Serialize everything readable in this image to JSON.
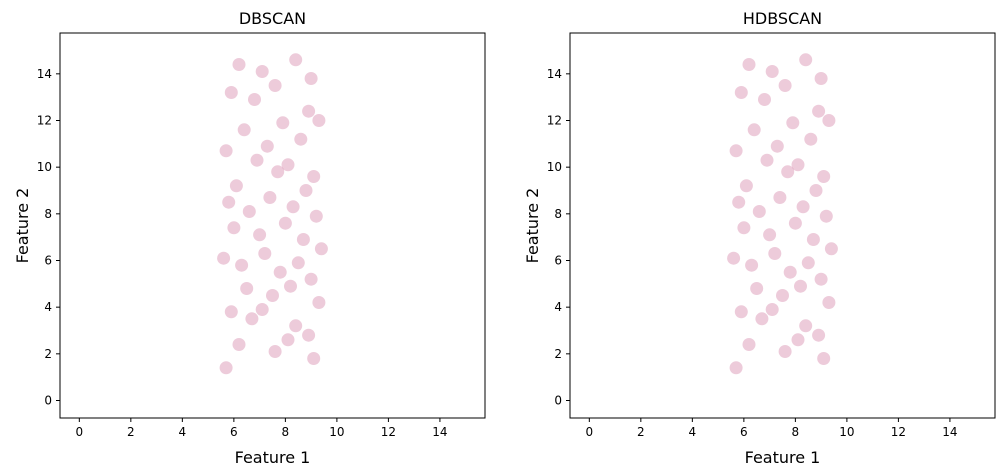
{
  "chart_data": [
    {
      "type": "scatter",
      "title": "DBSCAN",
      "xlabel": "Feature 1",
      "ylabel": "Feature 2",
      "xlim": [
        -0.75,
        15.75
      ],
      "ylim": [
        -0.75,
        15.75
      ],
      "xticks": [
        0,
        2,
        4,
        6,
        8,
        10,
        12,
        14
      ],
      "yticks": [
        0,
        2,
        4,
        6,
        8,
        10,
        12,
        14
      ],
      "grid": false,
      "marker_color": "#c0457a",
      "series": [
        {
          "x": [
            6.2,
            7.1,
            8.4,
            9.0,
            5.9,
            6.8,
            7.6,
            8.9,
            9.3,
            6.4,
            7.9,
            8.6,
            5.7,
            6.9,
            7.3,
            8.1,
            9.1,
            6.1,
            7.7,
            8.8,
            5.8,
            6.6,
            7.4,
            8.3,
            9.2,
            6.0,
            7.0,
            8.0,
            8.7,
            9.4,
            5.6,
            6.3,
            7.2,
            7.8,
            8.5,
            9.0,
            6.5,
            7.5,
            8.2,
            9.3,
            5.9,
            6.7,
            7.1,
            8.4,
            8.9,
            6.2,
            7.6,
            8.1,
            9.1,
            5.7
          ],
          "y": [
            14.4,
            14.1,
            14.6,
            13.8,
            13.2,
            12.9,
            13.5,
            12.4,
            12.0,
            11.6,
            11.9,
            11.2,
            10.7,
            10.3,
            10.9,
            10.1,
            9.6,
            9.2,
            9.8,
            9.0,
            8.5,
            8.1,
            8.7,
            8.3,
            7.9,
            7.4,
            7.1,
            7.6,
            6.9,
            6.5,
            6.1,
            5.8,
            6.3,
            5.5,
            5.9,
            5.2,
            4.8,
            4.5,
            4.9,
            4.2,
            3.8,
            3.5,
            3.9,
            3.2,
            2.8,
            2.4,
            2.1,
            2.6,
            1.8,
            1.4
          ]
        }
      ]
    },
    {
      "type": "scatter",
      "title": "HDBSCAN",
      "xlabel": "Feature 1",
      "ylabel": "Feature 2",
      "xlim": [
        -0.75,
        15.75
      ],
      "ylim": [
        -0.75,
        15.75
      ],
      "xticks": [
        0,
        2,
        4,
        6,
        8,
        10,
        12,
        14
      ],
      "yticks": [
        0,
        2,
        4,
        6,
        8,
        10,
        12,
        14
      ],
      "grid": false,
      "marker_color": "#c0457a",
      "series": [
        {
          "x": [
            6.2,
            7.1,
            8.4,
            9.0,
            5.9,
            6.8,
            7.6,
            8.9,
            9.3,
            6.4,
            7.9,
            8.6,
            5.7,
            6.9,
            7.3,
            8.1,
            9.1,
            6.1,
            7.7,
            8.8,
            5.8,
            6.6,
            7.4,
            8.3,
            9.2,
            6.0,
            7.0,
            8.0,
            8.7,
            9.4,
            5.6,
            6.3,
            7.2,
            7.8,
            8.5,
            9.0,
            6.5,
            7.5,
            8.2,
            9.3,
            5.9,
            6.7,
            7.1,
            8.4,
            8.9,
            6.2,
            7.6,
            8.1,
            9.1,
            5.7
          ],
          "y": [
            14.4,
            14.1,
            14.6,
            13.8,
            13.2,
            12.9,
            13.5,
            12.4,
            12.0,
            11.6,
            11.9,
            11.2,
            10.7,
            10.3,
            10.9,
            10.1,
            9.6,
            9.2,
            9.8,
            9.0,
            8.5,
            8.1,
            8.7,
            8.3,
            7.9,
            7.4,
            7.1,
            7.6,
            6.9,
            6.5,
            6.1,
            5.8,
            6.3,
            5.5,
            5.9,
            5.2,
            4.8,
            4.5,
            4.9,
            4.2,
            3.8,
            3.5,
            3.9,
            3.2,
            2.8,
            2.4,
            2.1,
            2.6,
            1.8,
            1.4
          ]
        }
      ]
    }
  ]
}
